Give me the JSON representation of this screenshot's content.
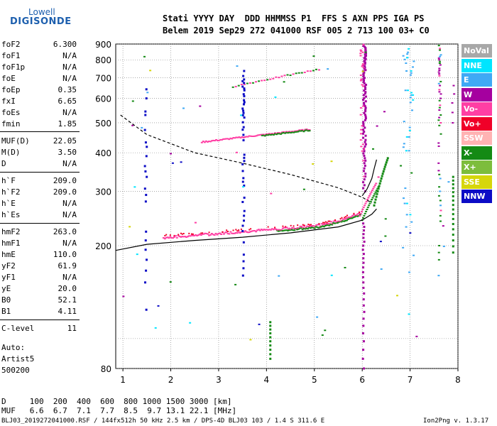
{
  "logo": {
    "line1": "Lowell",
    "line2": "DIGISONDE"
  },
  "header": {
    "line1": "Stati YYYY DAY  DDD HHMMSS P1  FFS S AXN PPS IGA PS",
    "line2": "Belem 2019 Sep29 272 041000 RSF 005 2 713 100 03+ C0"
  },
  "params": [
    {
      "name": "foF2",
      "value": "6.300"
    },
    {
      "name": "foF1",
      "value": "N/A"
    },
    {
      "name": "foF1p",
      "value": "N/A"
    },
    {
      "name": "foE",
      "value": "N/A"
    },
    {
      "name": "foEp",
      "value": "0.35"
    },
    {
      "name": "fxI",
      "value": "6.65"
    },
    {
      "name": "foEs",
      "value": "N/A"
    },
    {
      "name": "fmin",
      "value": "1.85"
    },
    {
      "name": "MUF(D)",
      "value": "22.05"
    },
    {
      "name": "M(D)",
      "value": "3.50"
    },
    {
      "name": "D",
      "value": "N/A"
    },
    {
      "name": "h`F",
      "value": "209.0"
    },
    {
      "name": "h`F2",
      "value": "209.0"
    },
    {
      "name": "h`E",
      "value": "N/A"
    },
    {
      "name": "h`Es",
      "value": "N/A"
    },
    {
      "name": "hmF2",
      "value": "263.0"
    },
    {
      "name": "hmF1",
      "value": "N/A"
    },
    {
      "name": "hmE",
      "value": "110.0"
    },
    {
      "name": "yF2",
      "value": "61.9"
    },
    {
      "name": "yF1",
      "value": "N/A"
    },
    {
      "name": "yE",
      "value": "20.0"
    },
    {
      "name": "B0",
      "value": "52.1"
    },
    {
      "name": "B1",
      "value": "4.11"
    },
    {
      "name": "C-level",
      "value": "11"
    }
  ],
  "extra": {
    "auto_label": "Auto:",
    "artist": "Artist5",
    "code": "500200"
  },
  "muf_table": {
    "d_row": "D     100  200  400  600  800 1000 1500 3000 [km]",
    "muf_row": "MUF   6.6  6.7  7.1  7.7  8.5  9.7 13.1 22.1 [MHz]"
  },
  "footer": {
    "left": "BLJ03_2019272041000.RSF / 144fx512h 50 kHz 2.5 km / DPS-4D BLJ03 103 / 1.4 S 311.6 E",
    "right": "Ion2Png v. 1.3.17"
  },
  "legend": [
    {
      "label": "NoVal",
      "color": "#a8a8a8"
    },
    {
      "label": "NNE",
      "color": "#00e5ff"
    },
    {
      "label": "E",
      "color": "#3fa9f5"
    },
    {
      "label": "W",
      "color": "#a5009f"
    },
    {
      "label": "Vo-",
      "color": "#ff3fa4"
    },
    {
      "label": "Vo+",
      "color": "#f00028"
    },
    {
      "label": "SSW",
      "color": "#ffb3b3"
    },
    {
      "label": "X-",
      "color": "#148a14"
    },
    {
      "label": "X+",
      "color": "#7dbd3c"
    },
    {
      "label": "SSE",
      "color": "#d6d60a"
    },
    {
      "label": "NNW",
      "color": "#0c0cc6"
    }
  ],
  "chart_data": {
    "type": "scatter",
    "xlim": [
      0.85,
      8.0
    ],
    "ylim": [
      80,
      900
    ],
    "x_ticks": [
      1,
      2,
      3,
      4,
      5,
      6,
      7,
      8
    ],
    "y_ticks": [
      80,
      100,
      200,
      300,
      400,
      500,
      600,
      700,
      800,
      900
    ],
    "y_tick_labels": [
      "80",
      "",
      "200",
      "300",
      "400",
      "500",
      "600",
      "700",
      "800",
      "900"
    ],
    "y_scale": "log",
    "grid": "dotted",
    "series": [
      {
        "style": "solid",
        "color": "#000000",
        "x": [
          0.85,
          1.5,
          2.5,
          3.5,
          4.5,
          5.5,
          6.0,
          6.2,
          6.3
        ],
        "y": [
          193,
          202,
          208,
          213,
          220,
          230,
          242,
          253,
          263
        ]
      },
      {
        "style": "dashed",
        "color": "#000000",
        "x": [
          0.95,
          1.5,
          2.5,
          3.5,
          4.5,
          5.5,
          6.0,
          6.2
        ],
        "y": [
          530,
          458,
          400,
          370,
          340,
          308,
          287,
          275
        ]
      },
      {
        "style": "solid",
        "color": "#000000",
        "x": [
          6.0,
          6.1,
          6.2,
          6.25,
          6.3
        ],
        "y": [
          290,
          305,
          330,
          355,
          380
        ]
      }
    ]
  }
}
